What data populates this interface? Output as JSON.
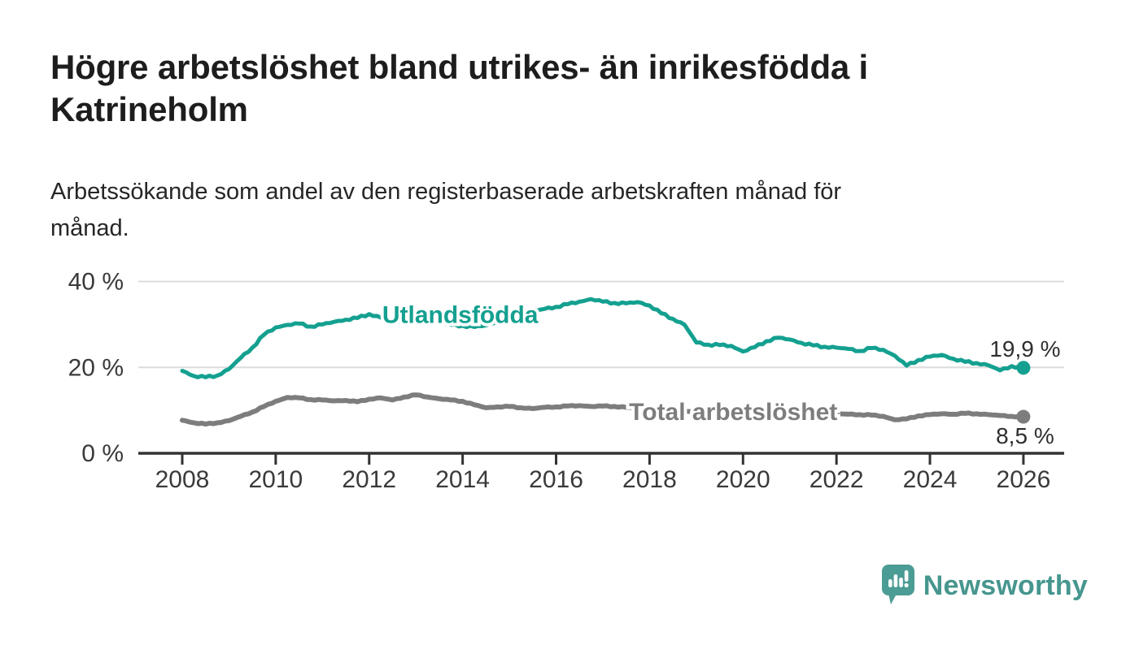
{
  "header": {
    "title_lines": [
      "Högre arbetslöshet bland utrikes- än inrikesfödda i",
      "Katrineholm"
    ],
    "subtitle_lines": [
      "Arbetssökande som andel av den registerbaserade arbetskraften månad för",
      "månad."
    ]
  },
  "chart_data": {
    "type": "line",
    "title": "Högre arbetslöshet bland utrikes- än inrikesfödda i Katrineholm",
    "subtitle": "Arbetssökande som andel av den registerbaserade arbetskraften månad för månad.",
    "unit": "%",
    "grid": "horizontal-only",
    "legend_position": "inline-labels-on-lines",
    "xlim": [
      2007.05,
      2026.9
    ],
    "ylim": [
      0,
      42
    ],
    "x_ticks": [
      {
        "value": 2008,
        "label": "2008"
      },
      {
        "value": 2010,
        "label": "2010"
      },
      {
        "value": 2012,
        "label": "2012"
      },
      {
        "value": 2014,
        "label": "2014"
      },
      {
        "value": 2016,
        "label": "2016"
      },
      {
        "value": 2018,
        "label": "2018"
      },
      {
        "value": 2020,
        "label": "2020"
      },
      {
        "value": 2022,
        "label": "2022"
      },
      {
        "value": 2024,
        "label": "2024"
      },
      {
        "value": 2026,
        "label": "2026"
      }
    ],
    "y_ticks": [
      {
        "value": 0,
        "label": "0 %"
      },
      {
        "value": 20,
        "label": "20 %"
      },
      {
        "value": 40,
        "label": "40 %"
      }
    ],
    "colors": {
      "utlandsfodda": "#14A090",
      "total": "#7d7d7d",
      "gridline": "#dcdcdc",
      "axis": "#333333",
      "tick_label": "#3a3a3a",
      "value_label": "#2f2f2f"
    },
    "series": [
      {
        "name": "Utlandsfödda",
        "color": "#14A090",
        "line_width": 5,
        "label_x": 2012.28,
        "label_y": 30.4,
        "end_value": 19.9,
        "end_label": "19,9 %",
        "end_label_position": "above",
        "points": [
          [
            2008.0,
            19.2
          ],
          [
            2008.25,
            18.0
          ],
          [
            2008.5,
            17.7
          ],
          [
            2008.75,
            18.1
          ],
          [
            2009.0,
            19.6
          ],
          [
            2009.25,
            22.2
          ],
          [
            2009.5,
            24.6
          ],
          [
            2009.75,
            27.6
          ],
          [
            2010.0,
            29.3
          ],
          [
            2010.25,
            29.9
          ],
          [
            2010.5,
            30.2
          ],
          [
            2010.75,
            29.5
          ],
          [
            2011.0,
            30.0
          ],
          [
            2011.25,
            30.6
          ],
          [
            2011.5,
            31.1
          ],
          [
            2011.75,
            31.5
          ],
          [
            2012.0,
            32.4
          ],
          [
            2012.25,
            31.6
          ],
          [
            2012.5,
            30.6
          ],
          [
            2012.75,
            30.9
          ],
          [
            2013.0,
            31.3
          ],
          [
            2013.25,
            30.8
          ],
          [
            2013.5,
            30.3
          ],
          [
            2013.75,
            29.9
          ],
          [
            2014.0,
            29.7
          ],
          [
            2014.25,
            29.4
          ],
          [
            2014.5,
            29.8
          ],
          [
            2014.75,
            30.7
          ],
          [
            2015.0,
            31.5
          ],
          [
            2015.25,
            32.3
          ],
          [
            2015.5,
            33.0
          ],
          [
            2015.75,
            33.6
          ],
          [
            2016.0,
            34.1
          ],
          [
            2016.25,
            34.7
          ],
          [
            2016.5,
            35.3
          ],
          [
            2016.75,
            35.9
          ],
          [
            2017.0,
            35.3
          ],
          [
            2017.25,
            35.0
          ],
          [
            2017.5,
            34.9
          ],
          [
            2017.75,
            35.2
          ],
          [
            2018.0,
            34.4
          ],
          [
            2018.25,
            32.6
          ],
          [
            2018.5,
            31.3
          ],
          [
            2018.75,
            29.9
          ],
          [
            2019.0,
            25.8
          ],
          [
            2019.25,
            25.3
          ],
          [
            2019.5,
            25.2
          ],
          [
            2019.75,
            25.0
          ],
          [
            2020.0,
            23.7
          ],
          [
            2020.25,
            24.7
          ],
          [
            2020.5,
            26.1
          ],
          [
            2020.75,
            26.9
          ],
          [
            2021.0,
            26.5
          ],
          [
            2021.25,
            25.7
          ],
          [
            2021.5,
            25.1
          ],
          [
            2021.75,
            24.8
          ],
          [
            2022.0,
            24.6
          ],
          [
            2022.25,
            24.3
          ],
          [
            2022.5,
            23.8
          ],
          [
            2022.75,
            24.5
          ],
          [
            2023.0,
            24.1
          ],
          [
            2023.25,
            22.7
          ],
          [
            2023.5,
            20.4
          ],
          [
            2023.75,
            21.7
          ],
          [
            2024.0,
            22.5
          ],
          [
            2024.25,
            22.9
          ],
          [
            2024.5,
            22.0
          ],
          [
            2024.75,
            21.3
          ],
          [
            2025.0,
            21.0
          ],
          [
            2025.25,
            20.5
          ],
          [
            2025.5,
            19.3
          ],
          [
            2025.75,
            20.3
          ],
          [
            2026.0,
            19.9
          ]
        ]
      },
      {
        "name": "Total arbetslöshet",
        "color": "#7d7d7d",
        "line_width": 6,
        "label_x": 2017.56,
        "label_y": 7.75,
        "end_value": 8.5,
        "end_label": "8,5 %",
        "end_label_position": "below",
        "points": [
          [
            2008.0,
            7.7
          ],
          [
            2008.25,
            7.1
          ],
          [
            2008.5,
            6.8
          ],
          [
            2008.75,
            7.1
          ],
          [
            2009.0,
            7.6
          ],
          [
            2009.25,
            8.6
          ],
          [
            2009.5,
            9.6
          ],
          [
            2009.75,
            10.9
          ],
          [
            2010.0,
            12.1
          ],
          [
            2010.25,
            13.0
          ],
          [
            2010.5,
            12.9
          ],
          [
            2010.75,
            12.5
          ],
          [
            2011.0,
            12.4
          ],
          [
            2011.25,
            12.2
          ],
          [
            2011.5,
            12.3
          ],
          [
            2011.75,
            12.0
          ],
          [
            2012.0,
            12.6
          ],
          [
            2012.25,
            12.9
          ],
          [
            2012.5,
            12.4
          ],
          [
            2012.75,
            13.1
          ],
          [
            2013.0,
            13.6
          ],
          [
            2013.25,
            13.1
          ],
          [
            2013.5,
            12.7
          ],
          [
            2013.75,
            12.4
          ],
          [
            2014.0,
            12.1
          ],
          [
            2014.25,
            11.3
          ],
          [
            2014.5,
            10.6
          ],
          [
            2014.75,
            10.8
          ],
          [
            2015.0,
            10.9
          ],
          [
            2015.25,
            10.6
          ],
          [
            2015.5,
            10.4
          ],
          [
            2015.75,
            10.7
          ],
          [
            2016.0,
            10.8
          ],
          [
            2016.25,
            11.0
          ],
          [
            2016.5,
            11.1
          ],
          [
            2016.75,
            10.9
          ],
          [
            2017.0,
            11.0
          ],
          [
            2017.25,
            10.9
          ],
          [
            2017.5,
            10.7
          ],
          [
            2017.75,
            10.5
          ],
          [
            2018.0,
            10.4
          ],
          [
            2018.25,
            10.2
          ],
          [
            2018.5,
            10.0
          ],
          [
            2018.75,
            9.8
          ],
          [
            2019.0,
            9.6
          ],
          [
            2019.25,
            9.5
          ],
          [
            2019.5,
            9.6
          ],
          [
            2019.75,
            9.8
          ],
          [
            2020.0,
            9.9
          ],
          [
            2020.25,
            10.3
          ],
          [
            2020.5,
            10.5
          ],
          [
            2020.75,
            10.4
          ],
          [
            2021.0,
            10.2
          ],
          [
            2021.25,
            9.9
          ],
          [
            2021.5,
            9.6
          ],
          [
            2021.75,
            9.4
          ],
          [
            2022.0,
            9.2
          ],
          [
            2022.25,
            9.1
          ],
          [
            2022.5,
            9.0
          ],
          [
            2022.75,
            8.9
          ],
          [
            2023.0,
            8.6
          ],
          [
            2023.25,
            7.8
          ],
          [
            2023.5,
            8.0
          ],
          [
            2023.75,
            8.7
          ],
          [
            2024.0,
            9.0
          ],
          [
            2024.25,
            9.2
          ],
          [
            2024.5,
            9.1
          ],
          [
            2024.75,
            9.3
          ],
          [
            2025.0,
            9.2
          ],
          [
            2025.25,
            9.0
          ],
          [
            2025.5,
            8.8
          ],
          [
            2025.75,
            8.6
          ],
          [
            2026.0,
            8.5
          ]
        ]
      }
    ]
  },
  "footer": {
    "brand": "Newsworthy",
    "brand_color": "#46968e",
    "logo_icon": "newsworthy-speech-bubble-barchart-icon"
  }
}
